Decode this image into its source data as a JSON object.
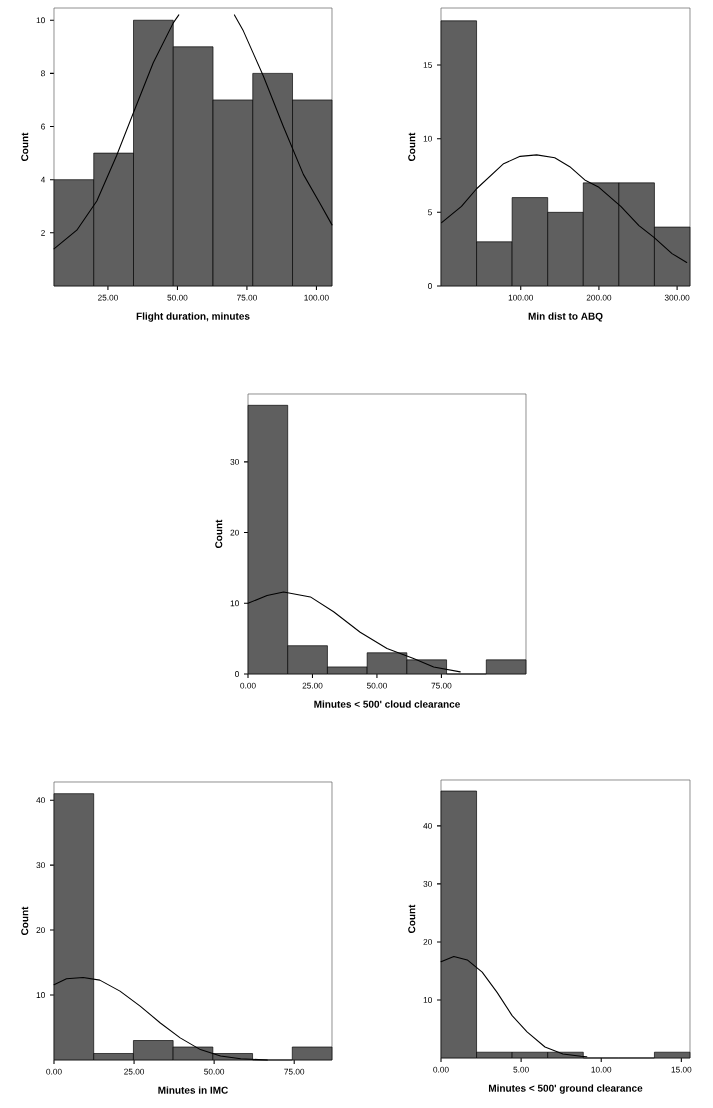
{
  "chart_data": [
    {
      "type": "histogram",
      "xlabel": "Flight duration, minutes",
      "ylabel": "Count",
      "xlim": [
        5.6,
        105.6
      ],
      "ylim": [
        0,
        10.46
      ],
      "xticks": [
        {
          "value": 25,
          "label": "25.00"
        },
        {
          "value": 50,
          "label": "50.00"
        },
        {
          "value": 75,
          "label": "75.00"
        },
        {
          "value": 100,
          "label": "100.00"
        }
      ],
      "yticks": [
        2,
        4,
        6,
        8,
        10
      ],
      "series": [
        {
          "type": "histogram",
          "color": "#5f5f5f",
          "bins": [
            5.6,
            19.9,
            34.2,
            48.5,
            62.8,
            77.1,
            91.4,
            105.6
          ],
          "values": [
            4,
            5,
            10,
            9,
            7,
            8,
            7
          ]
        },
        {
          "type": "line",
          "color": "#000000",
          "x": [
            5.6,
            13.8,
            21.0,
            28.1,
            34.1,
            41.3,
            48.5,
            50.5
          ],
          "values": [
            1.4,
            2.1,
            3.2,
            4.9,
            6.5,
            8.4,
            9.9,
            10.2
          ]
        },
        {
          "type": "line",
          "color": "#000000",
          "x": [
            70.5,
            73.7,
            80.9,
            88.1,
            95.3,
            101.3,
            105.6
          ],
          "values": [
            10.2,
            9.6,
            7.9,
            6.0,
            4.2,
            3.1,
            2.3
          ]
        }
      ]
    },
    {
      "type": "histogram",
      "xlabel": "Min dist to ABQ",
      "ylabel": "Count",
      "xlim": [
        -2,
        316.5
      ],
      "ylim": [
        0,
        18.87
      ],
      "xticks": [
        {
          "value": 100,
          "label": "100.00"
        },
        {
          "value": 200,
          "label": "200.00"
        },
        {
          "value": 300,
          "label": "300.00"
        }
      ],
      "yticks": [
        0,
        5,
        10,
        15
      ],
      "series": [
        {
          "type": "histogram",
          "color": "#5f5f5f",
          "bins": [
            -2,
            43.5,
            89,
            134.5,
            180,
            225.5,
            271,
            316.5
          ],
          "values": [
            18,
            3,
            6,
            5,
            7,
            7,
            4
          ]
        },
        {
          "type": "line",
          "color": "#000000",
          "x": [
            -1.2,
            24.2,
            43.5,
            78.1,
            99.2,
            120.4,
            143.5,
            162.7,
            181.9,
            200,
            228,
            251.2,
            270.4,
            293.5,
            312.3
          ],
          "values": [
            4.3,
            5.4,
            6.6,
            8.3,
            8.8,
            8.9,
            8.7,
            8.1,
            7.2,
            6.7,
            5.4,
            4.1,
            3.3,
            2.2,
            1.6
          ]
        }
      ]
    },
    {
      "type": "histogram",
      "xlabel": "Minutes < 500' cloud clearance",
      "ylabel": "Count",
      "xlim": [
        0,
        107.8
      ],
      "ylim": [
        0,
        39.6
      ],
      "xticks": [
        {
          "value": 0,
          "label": "0.00"
        },
        {
          "value": 25,
          "label": "25.00"
        },
        {
          "value": 50,
          "label": "50.00"
        },
        {
          "value": 75,
          "label": "75.00"
        }
      ],
      "yticks": [
        0,
        10,
        20,
        30
      ],
      "series": [
        {
          "type": "histogram",
          "color": "#5f5f5f",
          "bins": [
            0,
            15.4,
            30.8,
            46.2,
            61.6,
            77,
            92.4,
            107.8
          ],
          "values": [
            38,
            4,
            1,
            3,
            2,
            0,
            2
          ]
        },
        {
          "type": "line",
          "color": "#000000",
          "x": [
            0,
            7.4,
            13.8,
            24.2,
            33.2,
            43.5,
            53.9,
            64.2,
            72,
            82.3
          ],
          "values": [
            10.0,
            11.1,
            11.6,
            10.9,
            8.8,
            5.9,
            3.6,
            2.2,
            1.0,
            0.3
          ]
        }
      ]
    },
    {
      "type": "histogram",
      "xlabel": "Minutes in IMC",
      "ylabel": "Count",
      "xlim": [
        0,
        86.8
      ],
      "ylim": [
        0,
        42.8
      ],
      "xticks": [
        {
          "value": 0,
          "label": "0.00"
        },
        {
          "value": 25,
          "label": "25.00"
        },
        {
          "value": 50,
          "label": "50.00"
        },
        {
          "value": 75,
          "label": "75.00"
        }
      ],
      "yticks": [
        10,
        20,
        30,
        40
      ],
      "series": [
        {
          "type": "histogram",
          "color": "#5f5f5f",
          "bins": [
            0,
            12.4,
            24.8,
            37.2,
            49.6,
            62,
            74.4,
            86.8
          ],
          "values": [
            41,
            1,
            3,
            2,
            1,
            0,
            2
          ]
        },
        {
          "type": "line",
          "color": "#000000",
          "x": [
            0,
            3.9,
            9.1,
            14.3,
            20.6,
            26.9,
            33.2,
            39.4,
            45.7,
            52,
            58.3,
            66.6
          ],
          "values": [
            11.6,
            12.5,
            12.7,
            12.3,
            10.6,
            8.3,
            5.7,
            3.4,
            1.6,
            0.6,
            0.2,
            0
          ]
        }
      ]
    },
    {
      "type": "histogram",
      "xlabel": "Minutes < 500' ground clearance",
      "ylabel": "Count",
      "xlim": [
        0,
        15.54
      ],
      "ylim": [
        0,
        47.9
      ],
      "xticks": [
        {
          "value": 0,
          "label": "0.00"
        },
        {
          "value": 5,
          "label": "5.00"
        },
        {
          "value": 10,
          "label": "10.00"
        },
        {
          "value": 15,
          "label": "15.00"
        }
      ],
      "yticks": [
        10,
        20,
        30,
        40
      ],
      "series": [
        {
          "type": "histogram",
          "color": "#5f5f5f",
          "bins": [
            0,
            2.22,
            4.44,
            6.66,
            8.88,
            11.1,
            13.32,
            15.54
          ],
          "values": [
            46,
            1,
            1,
            1,
            0,
            0,
            1
          ]
        },
        {
          "type": "line",
          "color": "#000000",
          "x": [
            0,
            0.8,
            1.64,
            2.57,
            3.5,
            4.44,
            5.37,
            6.49,
            7.61,
            8.73,
            9.1
          ],
          "values": [
            16.6,
            17.5,
            16.9,
            14.8,
            11.3,
            7.3,
            4.5,
            1.9,
            0.7,
            0.3,
            0.2
          ]
        }
      ]
    }
  ]
}
